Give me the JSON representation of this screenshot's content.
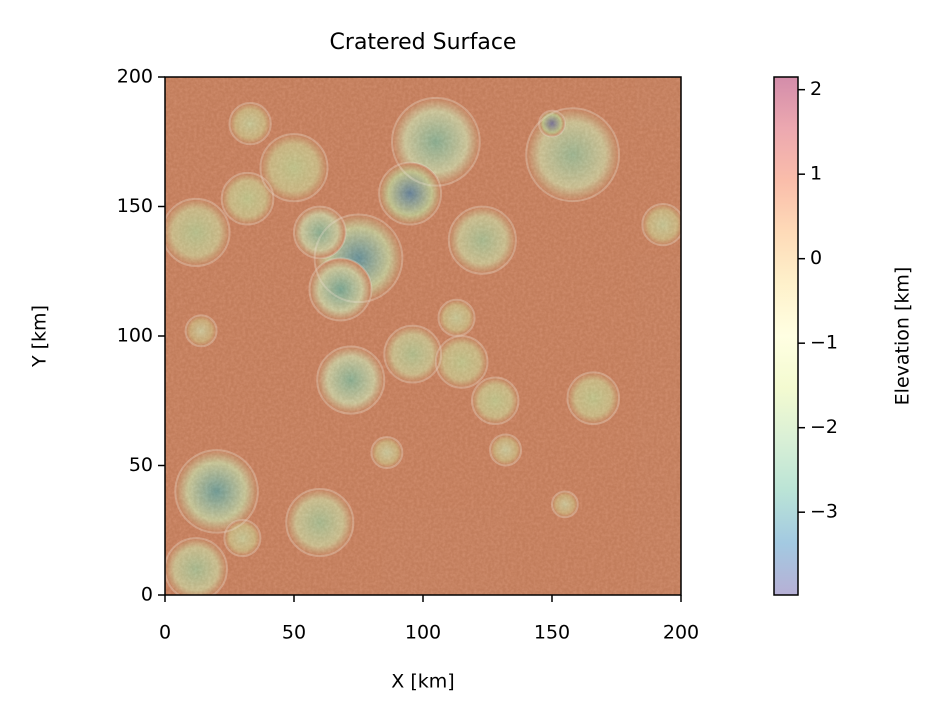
{
  "chart_data": {
    "type": "heatmap",
    "title": "Cratered Surface",
    "x_label": "X [km]",
    "y_label": "Y [km]",
    "xlim": [
      0,
      200
    ],
    "ylim": [
      0,
      200
    ],
    "xticks": [
      0,
      50,
      100,
      150,
      200
    ],
    "yticks": [
      0,
      50,
      100,
      150,
      200
    ],
    "colormap": "Spectral_r",
    "colorbar_label": "Elevation [km]",
    "clim": [
      -3.98,
      2.15
    ],
    "cticks": [
      {
        "value": -3,
        "label": "−3"
      },
      {
        "value": -2,
        "label": "−2"
      },
      {
        "value": -1,
        "label": "−1"
      },
      0,
      1,
      2
    ],
    "base_elevation": 0.8,
    "craters": [
      {
        "x": 105,
        "y": 175,
        "r": 17,
        "depth": -2.5
      },
      {
        "x": 158,
        "y": 170,
        "r": 18,
        "depth": -2.2
      },
      {
        "x": 150,
        "y": 182,
        "r": 5,
        "depth": -3.9
      },
      {
        "x": 95,
        "y": 155,
        "r": 12,
        "depth": -3.5
      },
      {
        "x": 75,
        "y": 130,
        "r": 17,
        "depth": -3.2
      },
      {
        "x": 68,
        "y": 118,
        "r": 12,
        "depth": -2.8
      },
      {
        "x": 60,
        "y": 140,
        "r": 10,
        "depth": -2.5
      },
      {
        "x": 123,
        "y": 137,
        "r": 13,
        "depth": -2.0
      },
      {
        "x": 50,
        "y": 165,
        "r": 13,
        "depth": -1.5
      },
      {
        "x": 32,
        "y": 153,
        "r": 10,
        "depth": -1.5
      },
      {
        "x": 12,
        "y": 140,
        "r": 13,
        "depth": -1.7
      },
      {
        "x": 33,
        "y": 182,
        "r": 8,
        "depth": -1.2
      },
      {
        "x": 72,
        "y": 83,
        "r": 13,
        "depth": -2.5
      },
      {
        "x": 96,
        "y": 93,
        "r": 11,
        "depth": -1.8
      },
      {
        "x": 115,
        "y": 90,
        "r": 10,
        "depth": -1.5
      },
      {
        "x": 113,
        "y": 107,
        "r": 7,
        "depth": -1.2
      },
      {
        "x": 128,
        "y": 75,
        "r": 9,
        "depth": -1.5
      },
      {
        "x": 166,
        "y": 76,
        "r": 10,
        "depth": -1.5
      },
      {
        "x": 20,
        "y": 40,
        "r": 16,
        "depth": -3.0
      },
      {
        "x": 60,
        "y": 28,
        "r": 13,
        "depth": -2.0
      },
      {
        "x": 30,
        "y": 22,
        "r": 7,
        "depth": -1.2
      },
      {
        "x": 12,
        "y": 10,
        "r": 12,
        "depth": -2.0
      },
      {
        "x": 132,
        "y": 56,
        "r": 6,
        "depth": -1.0
      },
      {
        "x": 86,
        "y": 55,
        "r": 6,
        "depth": -1.0
      },
      {
        "x": 155,
        "y": 35,
        "r": 5,
        "depth": -0.8
      },
      {
        "x": 193,
        "y": 143,
        "r": 8,
        "depth": -1.2
      },
      {
        "x": 14,
        "y": 102,
        "r": 6,
        "depth": -0.8
      }
    ]
  }
}
